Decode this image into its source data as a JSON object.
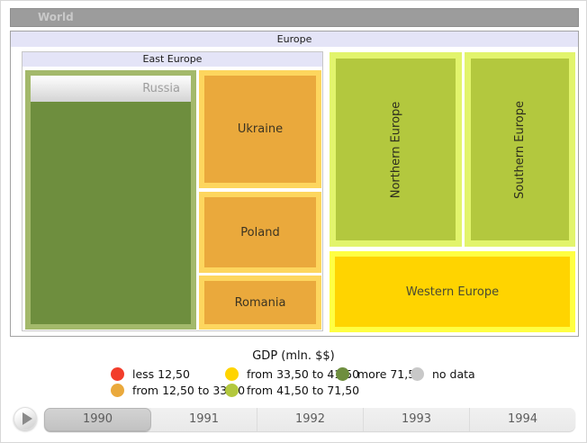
{
  "breadcrumb": {
    "label": "World"
  },
  "treemap": {
    "group_label": "Europe",
    "east_label": "East Europe",
    "russia": {
      "name": "Russia",
      "fill": "#6e8e3e",
      "border": "#a3b96b"
    },
    "ukraine": {
      "name": "Ukraine",
      "fill": "#eaa93c",
      "border": "#fdd65e"
    },
    "poland": {
      "name": "Poland",
      "fill": "#eaa93c",
      "border": "#fdd65e"
    },
    "romania": {
      "name": "Romania",
      "fill": "#eaa93c",
      "border": "#fdd65e"
    },
    "northern": {
      "name": "Northern Europe",
      "fill": "#b3c83e",
      "border": "#e2f46c"
    },
    "southern": {
      "name": "Southern Europe",
      "fill": "#b3c83e",
      "border": "#e2f46c"
    },
    "western": {
      "name": "Western Europe",
      "fill": "#ffd400",
      "border": "#ffff42"
    }
  },
  "legend": {
    "title": "GDP (mln. $$)",
    "items": [
      {
        "label": "less 12,50",
        "color": "#f23d2b"
      },
      {
        "label": "from 12,50 to 33,50",
        "color": "#eaa93c"
      },
      {
        "label": "from 33,50 to 41,50",
        "color": "#ffd400"
      },
      {
        "label": "from 41,50 to 71,50",
        "color": "#b3c83e"
      },
      {
        "label": "more 71,50",
        "color": "#6e8e3e"
      },
      {
        "label": "no data",
        "color": "#c8c8c8"
      }
    ]
  },
  "timeline": {
    "selected_year": "1990",
    "years": [
      {
        "label": "1990"
      },
      {
        "label": "1991"
      },
      {
        "label": "1992"
      },
      {
        "label": "1993"
      },
      {
        "label": "1994"
      }
    ]
  },
  "chart_data": {
    "type": "treemap",
    "root": "World",
    "current_drilldown_level": "Europe",
    "legend_title": "GDP (mln. $$)",
    "color_bins": [
      {
        "label": "less 12,50",
        "color": "#f23d2b"
      },
      {
        "label": "from 12,50 to 33,50",
        "color": "#eaa93c"
      },
      {
        "label": "from 33,50 to 41,50",
        "color": "#ffd400"
      },
      {
        "label": "from 41,50 to 71,50",
        "color": "#b3c83e"
      },
      {
        "label": "more 71,50",
        "color": "#6e8e3e"
      },
      {
        "label": "no data",
        "color": "#c8c8c8"
      }
    ],
    "nodes": [
      {
        "name": "Europe",
        "children": [
          {
            "name": "East Europe",
            "children": [
              {
                "name": "Russia",
                "bin": "more 71,50",
                "color": "#6e8e3e",
                "has_children": true
              },
              {
                "name": "Ukraine",
                "bin": "from 12,50 to 33,50",
                "color": "#eaa93c"
              },
              {
                "name": "Poland",
                "bin": "from 12,50 to 33,50",
                "color": "#eaa93c"
              },
              {
                "name": "Romania",
                "bin": "from 12,50 to 33,50",
                "color": "#eaa93c"
              }
            ]
          },
          {
            "name": "Northern Europe",
            "bin": "from 41,50 to 71,50",
            "color": "#b3c83e"
          },
          {
            "name": "Southern Europe",
            "bin": "from 41,50 to 71,50",
            "color": "#b3c83e"
          },
          {
            "name": "Western Europe",
            "bin": "from 33,50 to 41,50",
            "color": "#ffd400"
          }
        ]
      }
    ],
    "timeline": {
      "years": [
        "1990",
        "1991",
        "1992",
        "1993",
        "1994"
      ],
      "selected": "1990"
    }
  }
}
